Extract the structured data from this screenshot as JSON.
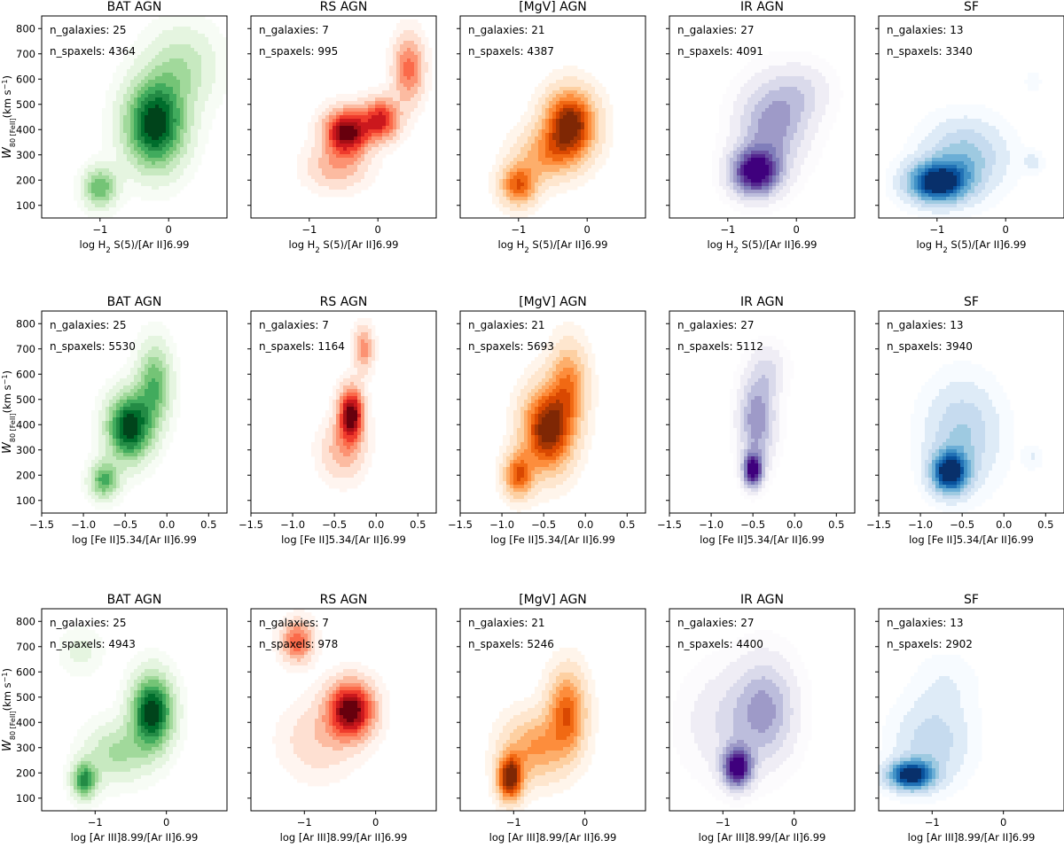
{
  "chart_data": {
    "type": "kde_density_grid",
    "ylabel_main": "W",
    "ylabel_sub": "80 [FeII]",
    "ylabel_unit": "(km s",
    "ylabel_unit_exp": "−1",
    "ylabel_close": ")",
    "yticks": [
      100,
      200,
      300,
      400,
      500,
      600,
      700,
      800
    ],
    "ylim": [
      50,
      850
    ],
    "colors": {
      "green": [
        "#f7fcf5",
        "#e5f5e0",
        "#c7e9c0",
        "#a1d99b",
        "#74c476",
        "#41ab5d",
        "#238b45",
        "#006d2c",
        "#00441b"
      ],
      "red": [
        "#fff5f0",
        "#fee0d2",
        "#fcbba1",
        "#fc9272",
        "#fb6a4a",
        "#ef3b2c",
        "#cb181d",
        "#a50f15",
        "#67000d"
      ],
      "orange": [
        "#fff5eb",
        "#fee6ce",
        "#fdd0a2",
        "#fdae6b",
        "#fd8d3c",
        "#f16913",
        "#d94801",
        "#a63603",
        "#7f2704"
      ],
      "purple": [
        "#fcfbfd",
        "#efedf5",
        "#dadaeb",
        "#bcbddc",
        "#9e9ac8",
        "#807dba",
        "#6a51a3",
        "#54278f",
        "#3f007d"
      ],
      "blue": [
        "#f7fbff",
        "#deebf7",
        "#c6dbef",
        "#9ecae1",
        "#6baed6",
        "#4292c6",
        "#2171b5",
        "#08519c",
        "#08306b"
      ]
    },
    "rows": [
      {
        "xlabel_parts": [
          "log H",
          "2",
          " S(5)/[Ar II]6.99"
        ],
        "xlim": [
          -1.85,
          0.85
        ],
        "xticks": [
          -1,
          0
        ],
        "xtick_labels": [
          "−1",
          "0"
        ],
        "panels": [
          {
            "title": "BAT AGN",
            "color": "green",
            "n_galaxies": "n_galaxies: 25",
            "n_spaxels": "n_spaxels: 4364",
            "peaks": [
              {
                "x": -0.2,
                "y": 420,
                "sx": 0.3,
                "sy": 120,
                "w": 1.0
              },
              {
                "x": -1.0,
                "y": 170,
                "sx": 0.17,
                "sy": 55,
                "w": 0.55
              },
              {
                "x": 0.2,
                "y": 650,
                "sx": 0.35,
                "sy": 110,
                "w": 0.3
              }
            ]
          },
          {
            "title": "RS AGN",
            "color": "red",
            "n_galaxies": "n_galaxies: 7",
            "n_spaxels": "n_spaxels: 995",
            "peaks": [
              {
                "x": -0.45,
                "y": 390,
                "sx": 0.22,
                "sy": 60,
                "w": 1.0
              },
              {
                "x": 0.05,
                "y": 440,
                "sx": 0.18,
                "sy": 55,
                "w": 0.7
              },
              {
                "x": 0.45,
                "y": 640,
                "sx": 0.15,
                "sy": 90,
                "w": 0.5
              },
              {
                "x": -0.6,
                "y": 250,
                "sx": 0.3,
                "sy": 60,
                "w": 0.3
              }
            ]
          },
          {
            "title": "[MgV] AGN",
            "color": "orange",
            "n_galaxies": "n_galaxies: 21",
            "n_spaxels": "n_spaxels: 4387",
            "peaks": [
              {
                "x": -0.25,
                "y": 420,
                "sx": 0.25,
                "sy": 90,
                "w": 1.0
              },
              {
                "x": -1.0,
                "y": 180,
                "sx": 0.18,
                "sy": 55,
                "w": 0.65
              },
              {
                "x": -0.6,
                "y": 300,
                "sx": 0.3,
                "sy": 70,
                "w": 0.4
              }
            ]
          },
          {
            "title": "IR AGN",
            "color": "purple",
            "n_galaxies": "n_galaxies: 27",
            "n_spaxels": "n_spaxels: 4091",
            "peaks": [
              {
                "x": -0.6,
                "y": 230,
                "sx": 0.25,
                "sy": 65,
                "w": 1.0
              },
              {
                "x": -0.35,
                "y": 420,
                "sx": 0.35,
                "sy": 120,
                "w": 0.5
              },
              {
                "x": 0.1,
                "y": 550,
                "sx": 0.3,
                "sy": 80,
                "w": 0.2
              }
            ]
          },
          {
            "title": "SF",
            "color": "blue",
            "n_galaxies": "n_galaxies: 13",
            "n_spaxels": "n_spaxels: 3340",
            "peaks": [
              {
                "x": -1.0,
                "y": 190,
                "sx": 0.3,
                "sy": 55,
                "w": 1.0
              },
              {
                "x": -0.6,
                "y": 290,
                "sx": 0.4,
                "sy": 100,
                "w": 0.4
              },
              {
                "x": 0.4,
                "y": 270,
                "sx": 0.1,
                "sy": 30,
                "w": 0.15
              },
              {
                "x": 0.4,
                "y": 590,
                "sx": 0.08,
                "sy": 25,
                "w": 0.1
              }
            ]
          }
        ]
      },
      {
        "xlabel_parts": [
          "log [Fe II]5.34/[Ar II]6.99",
          "",
          ""
        ],
        "xlim": [
          -1.5,
          0.72
        ],
        "xticks": [
          -1.5,
          -1.0,
          -0.5,
          0.0,
          0.5
        ],
        "xtick_labels": [
          "−1.5",
          "−1.0",
          "−0.5",
          "0.0",
          "0.5"
        ],
        "panels": [
          {
            "title": "BAT AGN",
            "color": "green",
            "n_galaxies": "n_galaxies: 25",
            "n_spaxels": "n_spaxels: 5530",
            "peaks": [
              {
                "x": -0.45,
                "y": 390,
                "sx": 0.18,
                "sy": 90,
                "w": 1.0
              },
              {
                "x": -0.75,
                "y": 180,
                "sx": 0.12,
                "sy": 50,
                "w": 0.6
              },
              {
                "x": -0.15,
                "y": 560,
                "sx": 0.14,
                "sy": 110,
                "w": 0.55
              }
            ]
          },
          {
            "title": "RS AGN",
            "color": "red",
            "n_galaxies": "n_galaxies: 7",
            "n_spaxels": "n_spaxels: 1164",
            "peaks": [
              {
                "x": -0.3,
                "y": 440,
                "sx": 0.1,
                "sy": 70,
                "w": 1.0
              },
              {
                "x": -0.15,
                "y": 700,
                "sx": 0.08,
                "sy": 60,
                "w": 0.4
              },
              {
                "x": -0.4,
                "y": 300,
                "sx": 0.18,
                "sy": 80,
                "w": 0.3
              }
            ]
          },
          {
            "title": "[MgV] AGN",
            "color": "orange",
            "n_galaxies": "n_galaxies: 21",
            "n_spaxels": "n_spaxels: 5693",
            "peaks": [
              {
                "x": -0.45,
                "y": 380,
                "sx": 0.2,
                "sy": 110,
                "w": 1.0
              },
              {
                "x": -0.8,
                "y": 200,
                "sx": 0.12,
                "sy": 60,
                "w": 0.65
              },
              {
                "x": -0.2,
                "y": 560,
                "sx": 0.15,
                "sy": 110,
                "w": 0.5
              }
            ]
          },
          {
            "title": "IR AGN",
            "color": "purple",
            "n_galaxies": "n_galaxies: 27",
            "n_spaxels": "n_spaxels: 5112",
            "peaks": [
              {
                "x": -0.5,
                "y": 220,
                "sx": 0.08,
                "sy": 45,
                "w": 1.0
              },
              {
                "x": -0.45,
                "y": 420,
                "sx": 0.15,
                "sy": 120,
                "w": 0.55
              },
              {
                "x": -0.3,
                "y": 620,
                "sx": 0.15,
                "sy": 70,
                "w": 0.2
              }
            ]
          },
          {
            "title": "SF",
            "color": "blue",
            "n_galaxies": "n_galaxies: 13",
            "n_spaxels": "n_spaxels: 3940",
            "peaks": [
              {
                "x": -0.65,
                "y": 210,
                "sx": 0.15,
                "sy": 55,
                "w": 1.0
              },
              {
                "x": -0.5,
                "y": 360,
                "sx": 0.3,
                "sy": 140,
                "w": 0.35
              },
              {
                "x": 0.35,
                "y": 270,
                "sx": 0.08,
                "sy": 30,
                "w": 0.12
              }
            ]
          }
        ]
      },
      {
        "xlabel_parts": [
          "log [Ar III]8.99/[Ar II]6.99",
          "",
          ""
        ],
        "xlim": [
          -1.75,
          0.85
        ],
        "xticks": [
          -1,
          0
        ],
        "xtick_labels": [
          "−1",
          "0"
        ],
        "panels": [
          {
            "title": "BAT AGN",
            "color": "green",
            "n_galaxies": "n_galaxies: 25",
            "n_spaxels": "n_spaxels: 4943",
            "peaks": [
              {
                "x": -0.2,
                "y": 440,
                "sx": 0.2,
                "sy": 100,
                "w": 1.0
              },
              {
                "x": -1.15,
                "y": 170,
                "sx": 0.12,
                "sy": 50,
                "w": 0.7
              },
              {
                "x": -0.7,
                "y": 280,
                "sx": 0.3,
                "sy": 80,
                "w": 0.35
              },
              {
                "x": -1.2,
                "y": 680,
                "sx": 0.2,
                "sy": 60,
                "w": 0.15
              }
            ]
          },
          {
            "title": "RS AGN",
            "color": "red",
            "n_galaxies": "n_galaxies: 7",
            "n_spaxels": "n_spaxels: 978",
            "peaks": [
              {
                "x": -0.35,
                "y": 450,
                "sx": 0.22,
                "sy": 75,
                "w": 1.0
              },
              {
                "x": -1.1,
                "y": 720,
                "sx": 0.15,
                "sy": 55,
                "w": 0.55
              },
              {
                "x": -0.8,
                "y": 330,
                "sx": 0.35,
                "sy": 100,
                "w": 0.2
              }
            ]
          },
          {
            "title": "[MgV] AGN",
            "color": "orange",
            "n_galaxies": "n_galaxies: 21",
            "n_spaxels": "n_spaxels: 5246",
            "peaks": [
              {
                "x": -1.05,
                "y": 180,
                "sx": 0.12,
                "sy": 60,
                "w": 1.0
              },
              {
                "x": -0.25,
                "y": 440,
                "sx": 0.18,
                "sy": 110,
                "w": 0.65
              },
              {
                "x": -0.7,
                "y": 300,
                "sx": 0.3,
                "sy": 90,
                "w": 0.45
              }
            ]
          },
          {
            "title": "IR AGN",
            "color": "purple",
            "n_galaxies": "n_galaxies: 27",
            "n_spaxels": "n_spaxels: 4400",
            "peaks": [
              {
                "x": -0.8,
                "y": 220,
                "sx": 0.14,
                "sy": 55,
                "w": 1.0
              },
              {
                "x": -0.4,
                "y": 450,
                "sx": 0.3,
                "sy": 140,
                "w": 0.45
              },
              {
                "x": -1.0,
                "y": 400,
                "sx": 0.4,
                "sy": 150,
                "w": 0.2
              }
            ]
          },
          {
            "title": "SF",
            "color": "blue",
            "n_galaxies": "n_galaxies: 13",
            "n_spaxels": "n_spaxels: 2902",
            "peaks": [
              {
                "x": -1.3,
                "y": 190,
                "sx": 0.22,
                "sy": 40,
                "w": 1.0
              },
              {
                "x": -1.0,
                "y": 320,
                "sx": 0.35,
                "sy": 110,
                "w": 0.3
              },
              {
                "x": -0.8,
                "y": 550,
                "sx": 0.3,
                "sy": 90,
                "w": 0.1
              }
            ]
          }
        ]
      }
    ]
  }
}
